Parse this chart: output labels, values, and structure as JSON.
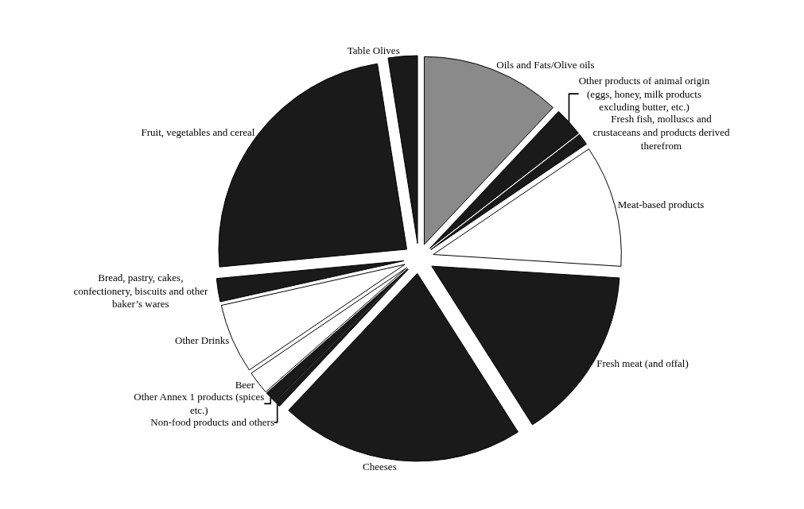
{
  "chart_data": {
    "type": "pie",
    "categories": [
      "Oils and Fats/Olive oils",
      "Other products of animal origin (eggs, honey, milk products excluding butter, etc.)",
      "Fresh fish, molluscs and crustaceans and products derived therefrom",
      "Meat-based products",
      "Fresh meat (and offal)",
      "Cheeses",
      "Non-food products and others",
      "Other Annex 1 products (spices etc.)",
      "Beer",
      "Other Drinks",
      "Bread, pastry, cakes, confectionery, biscuits and other baker’s wares",
      "Fruit, vegetables and cereal",
      "Table Olives"
    ],
    "values": [
      12,
      2.5,
      1,
      10.5,
      15,
      21,
      0.5,
      1,
      2,
      6,
      2,
      24,
      2.5
    ],
    "colors": [
      "#8a8a8a",
      "#1a1a1a",
      "#1a1a1a",
      "#ffffff",
      "#1a1a1a",
      "#1a1a1a",
      "#1a1a1a",
      "#1a1a1a",
      "#ffffff",
      "#ffffff",
      "#1a1a1a",
      "#1a1a1a",
      "#1a1a1a"
    ]
  }
}
